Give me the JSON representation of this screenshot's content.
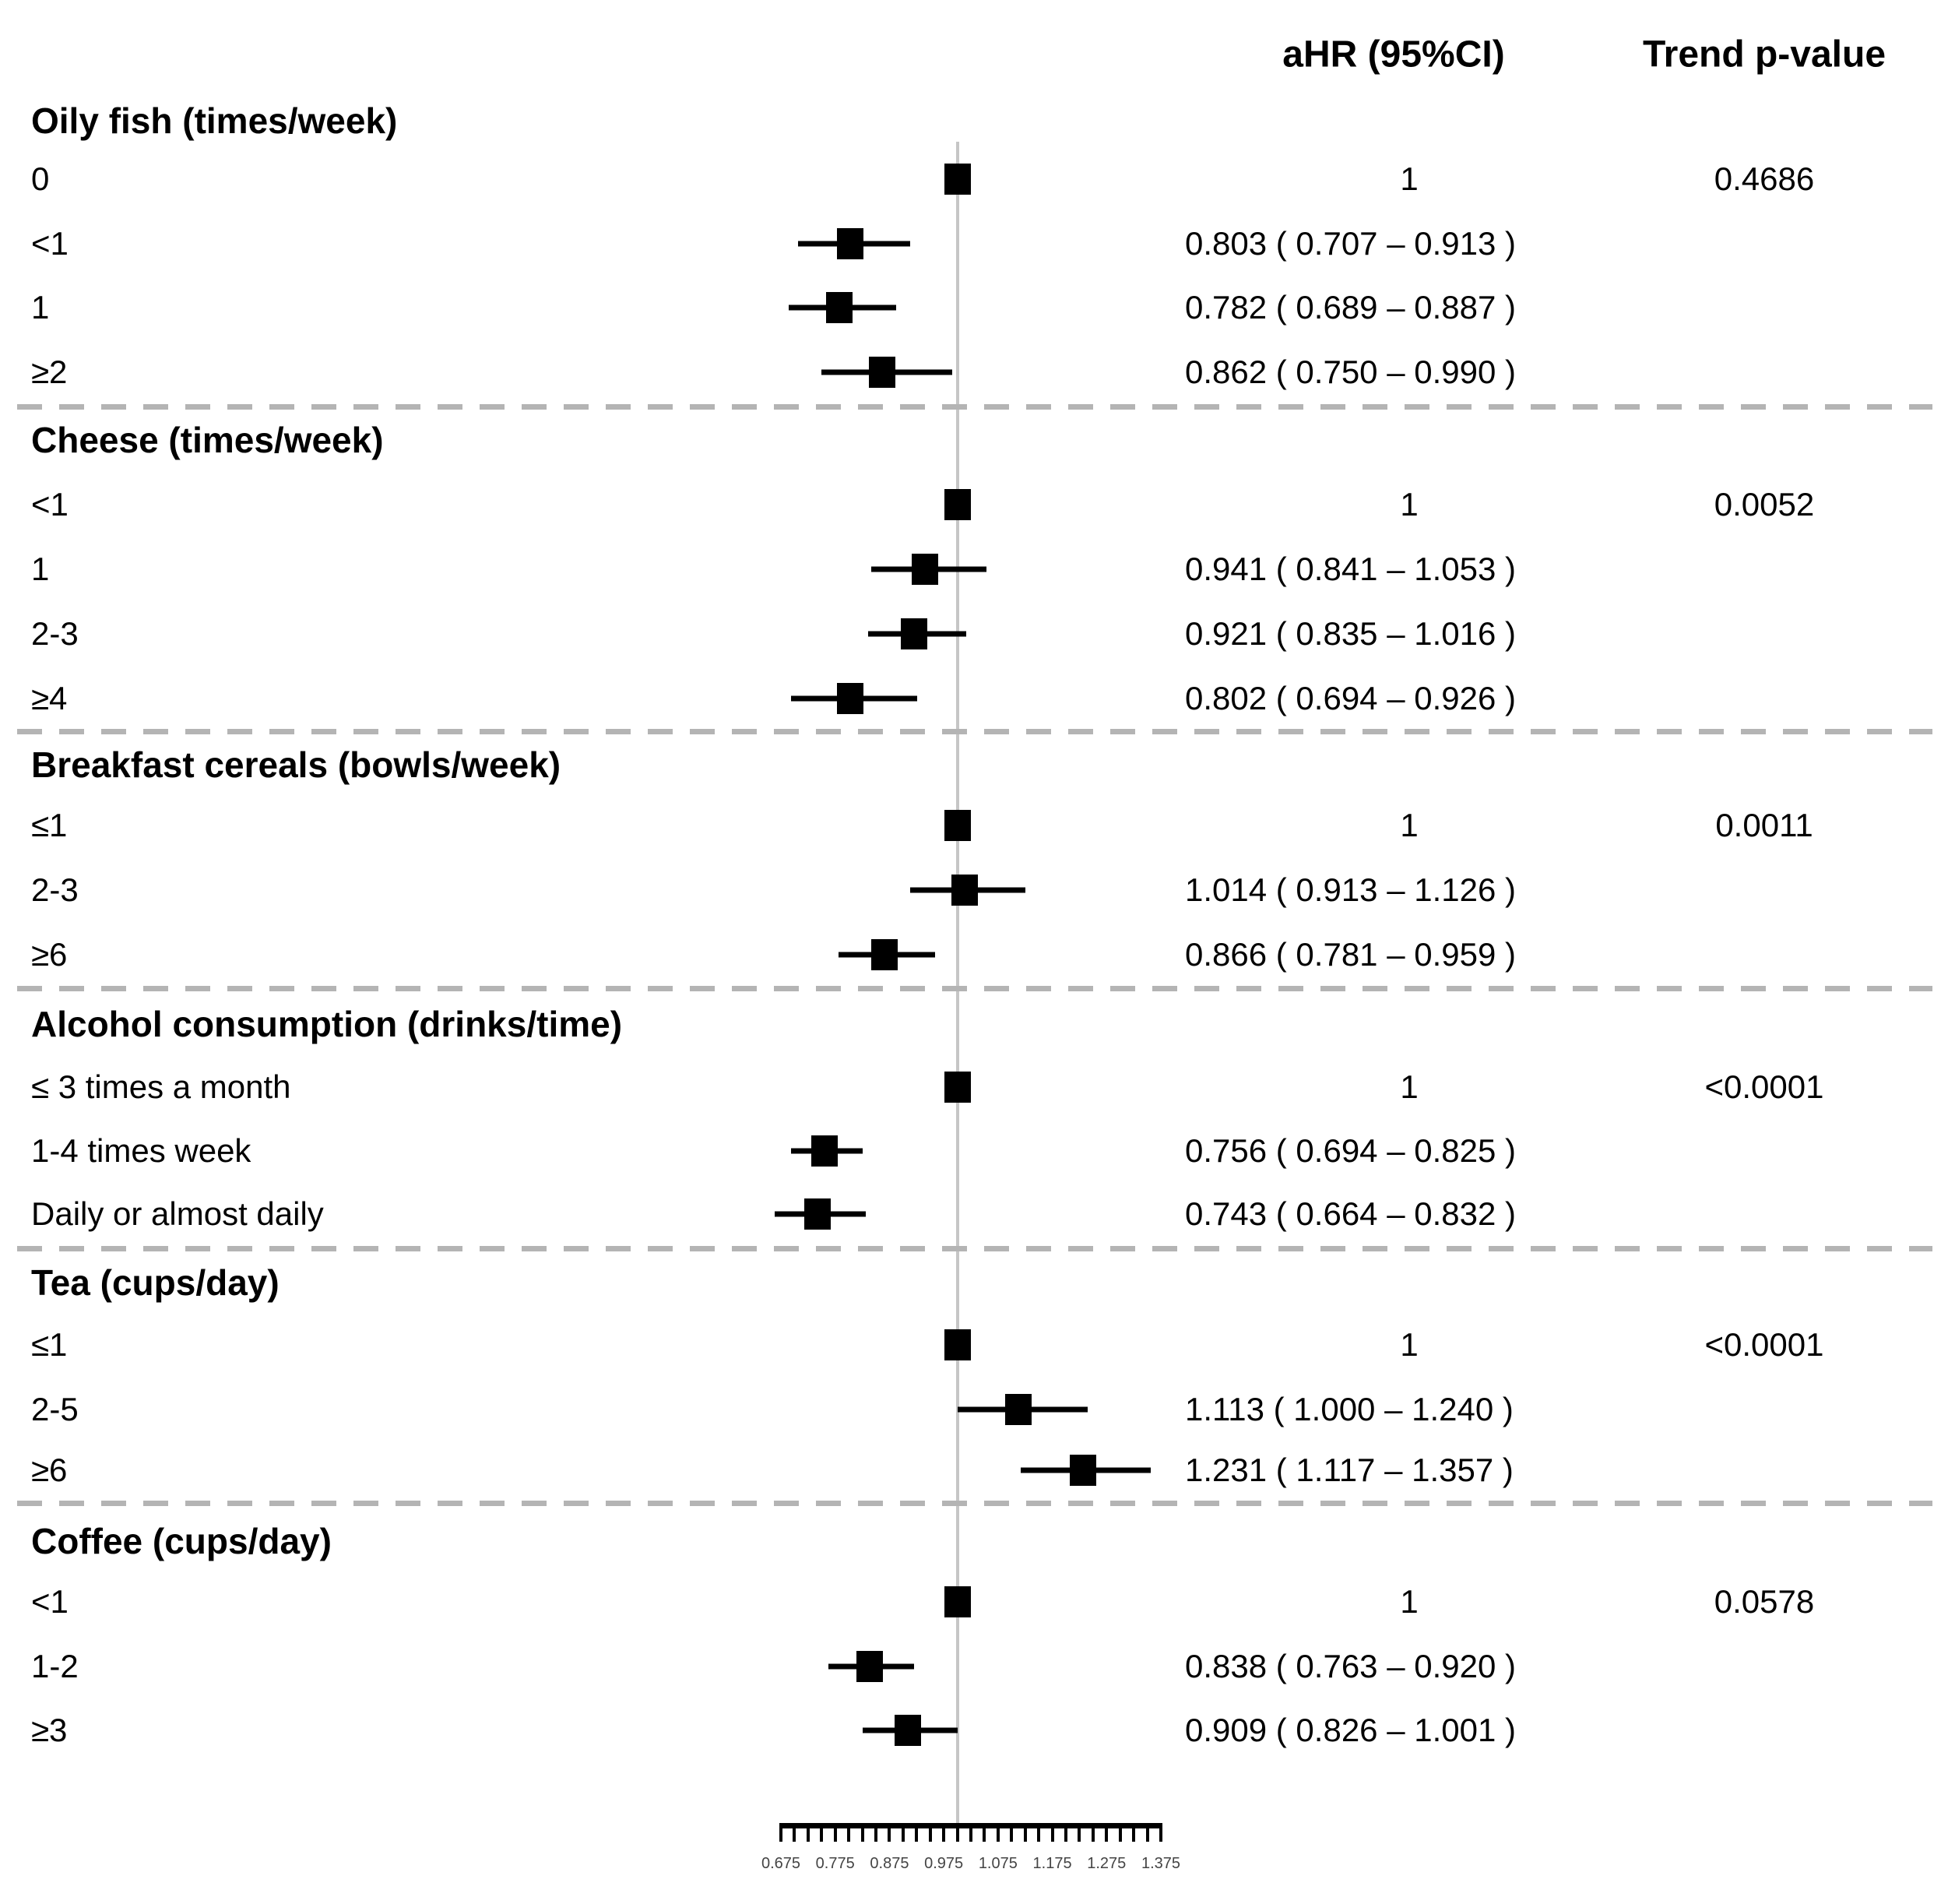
{
  "header": {
    "ahr_label": "aHR (95%CI)",
    "trend_label": "Trend p-value"
  },
  "colors": {
    "marker": "#000000",
    "reference_line": "#c6c6c6",
    "divider": "#b4b4b4",
    "text": "#000000",
    "axis_label": "#444444"
  },
  "chart_data": {
    "type": "forest",
    "reference_value": 1,
    "x_axis": {
      "min": 0.675,
      "max": 1.375,
      "minor_tick_step": 0.025,
      "label_step": 0.1,
      "tick_labels": [
        "0.675",
        "0.775",
        "0.875",
        "0.975",
        "1.075",
        "1.175",
        "1.275",
        "1.375"
      ]
    },
    "sections": [
      {
        "title": "Oily fish (times/week)",
        "trend_p": "0.4686",
        "rows": [
          {
            "label": "0",
            "ahr_text": "1",
            "is_ref": true,
            "est": 1,
            "lo": null,
            "hi": null
          },
          {
            "label": "<1",
            "ahr_text": "0.803 ( 0.707 – 0.913 )",
            "is_ref": false,
            "est": 0.803,
            "lo": 0.707,
            "hi": 0.913
          },
          {
            "label": "1",
            "ahr_text": "0.782 ( 0.689 – 0.887 )",
            "is_ref": false,
            "est": 0.782,
            "lo": 0.689,
            "hi": 0.887
          },
          {
            "label": "≥2",
            "ahr_text": "0.862 ( 0.750 – 0.990 )",
            "is_ref": false,
            "est": 0.862,
            "lo": 0.75,
            "hi": 0.99
          }
        ]
      },
      {
        "title": "Cheese (times/week)",
        "trend_p": "0.0052",
        "rows": [
          {
            "label": "<1",
            "ahr_text": "1",
            "is_ref": true,
            "est": 1,
            "lo": null,
            "hi": null
          },
          {
            "label": "1",
            "ahr_text": "0.941 ( 0.841 – 1.053 )",
            "is_ref": false,
            "est": 0.941,
            "lo": 0.841,
            "hi": 1.053
          },
          {
            "label": "2-3",
            "ahr_text": "0.921 ( 0.835 – 1.016 )",
            "is_ref": false,
            "est": 0.921,
            "lo": 0.835,
            "hi": 1.016
          },
          {
            "label": "≥4",
            "ahr_text": "0.802 ( 0.694 – 0.926 )",
            "is_ref": false,
            "est": 0.802,
            "lo": 0.694,
            "hi": 0.926
          }
        ]
      },
      {
        "title": "Breakfast cereals (bowls/week)",
        "trend_p": "0.0011",
        "rows": [
          {
            "label": "≤1",
            "ahr_text": "1",
            "is_ref": true,
            "est": 1,
            "lo": null,
            "hi": null
          },
          {
            "label": "2-3",
            "ahr_text": "1.014 ( 0.913 – 1.126 )",
            "is_ref": false,
            "est": 1.014,
            "lo": 0.913,
            "hi": 1.126
          },
          {
            "label": "≥6",
            "ahr_text": "0.866 ( 0.781 – 0.959 )",
            "is_ref": false,
            "est": 0.866,
            "lo": 0.781,
            "hi": 0.959
          }
        ]
      },
      {
        "title": "Alcohol consumption (drinks/time)",
        "trend_p": "<0.0001",
        "rows": [
          {
            "label": "≤ 3 times a month",
            "ahr_text": "1",
            "is_ref": true,
            "est": 1,
            "lo": null,
            "hi": null
          },
          {
            "label": "1-4 times week",
            "ahr_text": "0.756 ( 0.694 – 0.825 )",
            "is_ref": false,
            "est": 0.756,
            "lo": 0.694,
            "hi": 0.825
          },
          {
            "label": "Daily or almost daily",
            "ahr_text": "0.743 ( 0.664 – 0.832 )",
            "is_ref": false,
            "est": 0.743,
            "lo": 0.664,
            "hi": 0.832
          }
        ]
      },
      {
        "title": "Tea (cups/day)",
        "trend_p": "<0.0001",
        "rows": [
          {
            "label": "≤1",
            "ahr_text": "1",
            "is_ref": true,
            "est": 1,
            "lo": null,
            "hi": null
          },
          {
            "label": "2-5",
            "ahr_text": "1.113 ( 1.000 – 1.240 )",
            "is_ref": false,
            "est": 1.113,
            "lo": 1.0,
            "hi": 1.24
          },
          {
            "label": "≥6",
            "ahr_text": "1.231 ( 1.117 – 1.357 )",
            "is_ref": false,
            "est": 1.231,
            "lo": 1.117,
            "hi": 1.357
          }
        ]
      },
      {
        "title": "Coffee (cups/day)",
        "trend_p": "0.0578",
        "rows": [
          {
            "label": "<1",
            "ahr_text": "1",
            "is_ref": true,
            "est": 1,
            "lo": null,
            "hi": null
          },
          {
            "label": "1-2",
            "ahr_text": "0.838 ( 0.763 – 0.920 )",
            "is_ref": false,
            "est": 0.838,
            "lo": 0.763,
            "hi": 0.92
          },
          {
            "label": "≥3",
            "ahr_text": "0.909 ( 0.826 – 1.001 )",
            "is_ref": false,
            "est": 0.909,
            "lo": 0.826,
            "hi": 1.001
          }
        ]
      }
    ]
  }
}
